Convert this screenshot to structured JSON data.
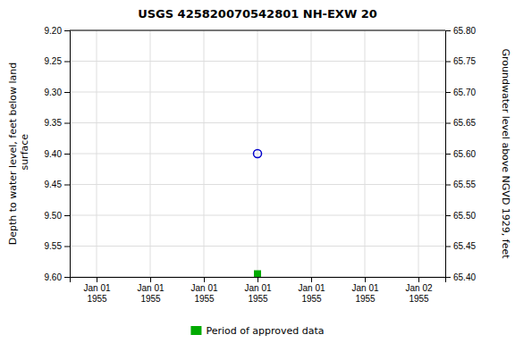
{
  "chart_data": {
    "type": "scatter",
    "title": "USGS 425820070542801 NH-EXW   20",
    "y_label": "Depth to water level, feet below land\n surface",
    "y2_label": "Groundwater level above NGVD 1929, feet",
    "categories": [
      "Jan 01\n1955",
      "Jan 01\n1955",
      "Jan 01\n1955",
      "Jan 01\n1955",
      "Jan 01\n1955",
      "Jan 01\n1955",
      "Jan 02\n1955"
    ],
    "series": [
      {
        "color": "#0000cc",
        "marker": "circle-open",
        "values": [
          null,
          null,
          null,
          9.4,
          null,
          null,
          null
        ]
      },
      {
        "name": "Period of approved data",
        "color": "#00aa00",
        "marker": "square",
        "values": [
          null,
          null,
          null,
          9.595,
          null,
          null,
          null
        ]
      }
    ],
    "ylim": [
      9.6,
      9.2
    ],
    "yticks": [
      {
        "value": 9.2,
        "label": "9.20"
      },
      9.25,
      {
        "value": 9.3,
        "label": "9.30"
      },
      9.35,
      {
        "value": 9.4,
        "label": "9.40"
      },
      9.45,
      {
        "value": 9.5,
        "label": "9.50"
      },
      9.55,
      {
        "value": 9.6,
        "label": "9.60"
      }
    ],
    "y2lim": [
      65.4,
      65.8
    ],
    "y2ticks": [
      {
        "value": 65.8,
        "label": "65.80"
      },
      65.75,
      {
        "value": 65.7,
        "label": "65.70"
      },
      65.65,
      {
        "value": 65.6,
        "label": "65.60"
      },
      65.55,
      {
        "value": 65.5,
        "label": "65.50"
      },
      65.45,
      {
        "value": 65.4,
        "label": "65.40"
      }
    ],
    "grid": true,
    "legend": "bottom"
  }
}
